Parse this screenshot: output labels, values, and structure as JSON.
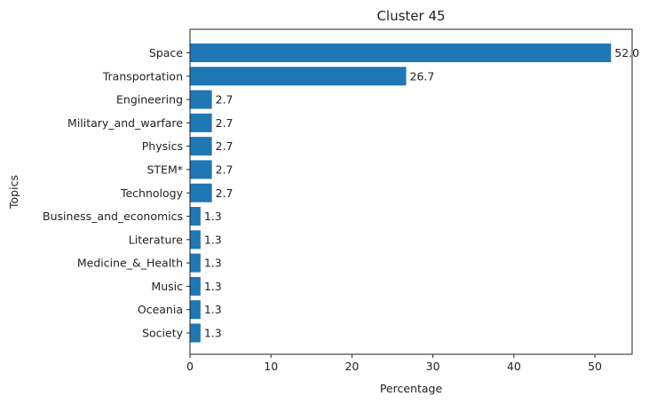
{
  "chart_data": {
    "type": "bar",
    "orientation": "horizontal",
    "title": "Cluster 45",
    "xlabel": "Percentage",
    "ylabel": "Topics",
    "categories": [
      "Space",
      "Transportation",
      "Engineering",
      "Military_and_warfare",
      "Physics",
      "STEM*",
      "Technology",
      "Business_and_economics",
      "Literature",
      "Medicine_&_Health",
      "Music",
      "Oceania",
      "Society"
    ],
    "values": [
      52.0,
      26.7,
      2.7,
      2.7,
      2.7,
      2.7,
      2.7,
      1.3,
      1.3,
      1.3,
      1.3,
      1.3,
      1.3
    ],
    "data_labels": [
      "52.0",
      "26.7",
      "2.7",
      "2.7",
      "2.7",
      "2.7",
      "2.7",
      "1.3",
      "1.3",
      "1.3",
      "1.3",
      "1.3",
      "1.3"
    ],
    "xlim": [
      0,
      54.6
    ],
    "xticks": [
      0,
      10,
      20,
      30,
      40,
      50
    ],
    "xtick_labels": [
      "0",
      "10",
      "20",
      "30",
      "40",
      "50"
    ],
    "grid": false,
    "bar_color": "#1f77b4"
  }
}
